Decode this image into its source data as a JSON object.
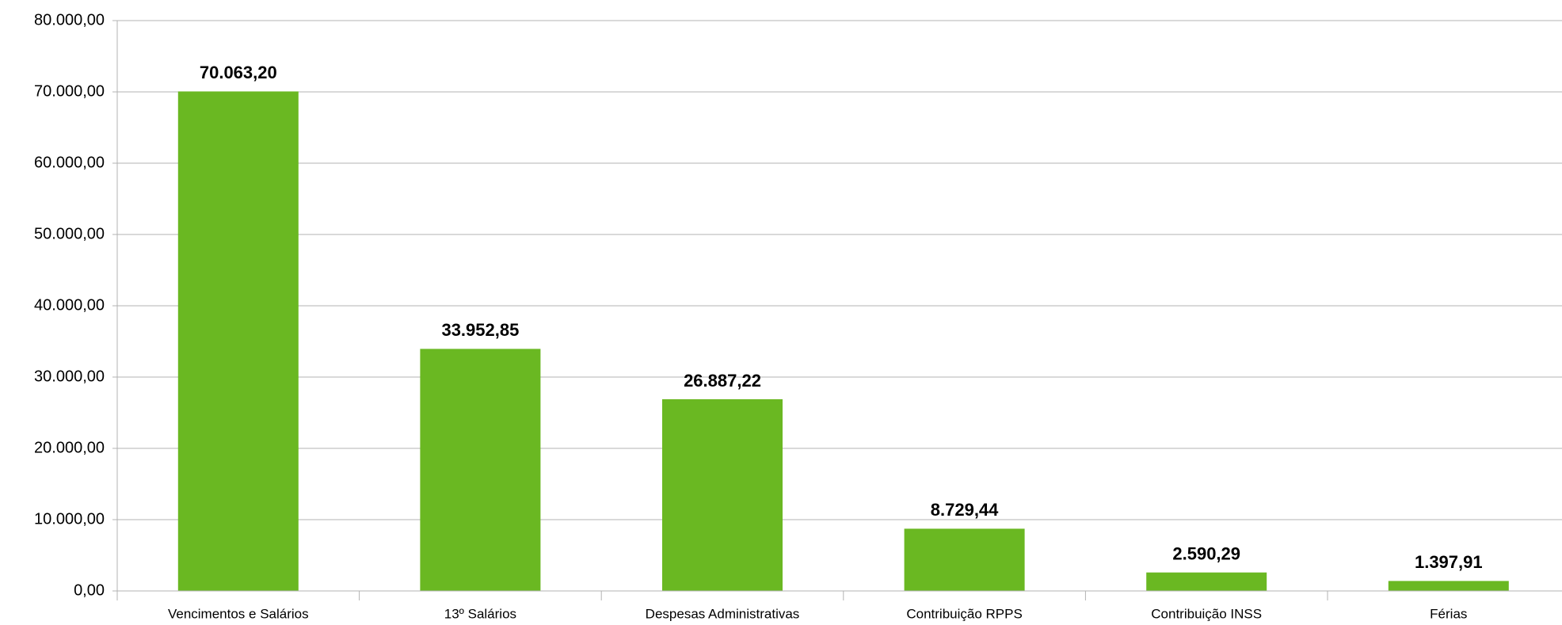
{
  "chart_data": {
    "type": "bar",
    "categories": [
      "Vencimentos e Salários",
      "13º Salários",
      "Despesas Administrativas",
      "Contribuição RPPS",
      "Contribuição INSS",
      "Férias"
    ],
    "values": [
      70063.2,
      33952.85,
      26887.22,
      8729.44,
      2590.29,
      1397.91
    ],
    "value_labels": [
      "70.063,20",
      "33.952,85",
      "26.887,22",
      "8.729,44",
      "2.590,29",
      "1.397,91"
    ],
    "color": "#6ab822",
    "ylim": [
      0,
      80000
    ],
    "yticks": [
      {
        "value": 0,
        "label": "0,00"
      },
      {
        "value": 10000,
        "label": "10.000,00"
      },
      {
        "value": 20000,
        "label": "20.000,00"
      },
      {
        "value": 30000,
        "label": "30.000,00"
      },
      {
        "value": 40000,
        "label": "40.000,00"
      },
      {
        "value": 50000,
        "label": "50.000,00"
      },
      {
        "value": 60000,
        "label": "60.000,00"
      },
      {
        "value": 70000,
        "label": "70.000,00"
      },
      {
        "value": 80000,
        "label": "80.000,00"
      }
    ],
    "grid": true
  }
}
